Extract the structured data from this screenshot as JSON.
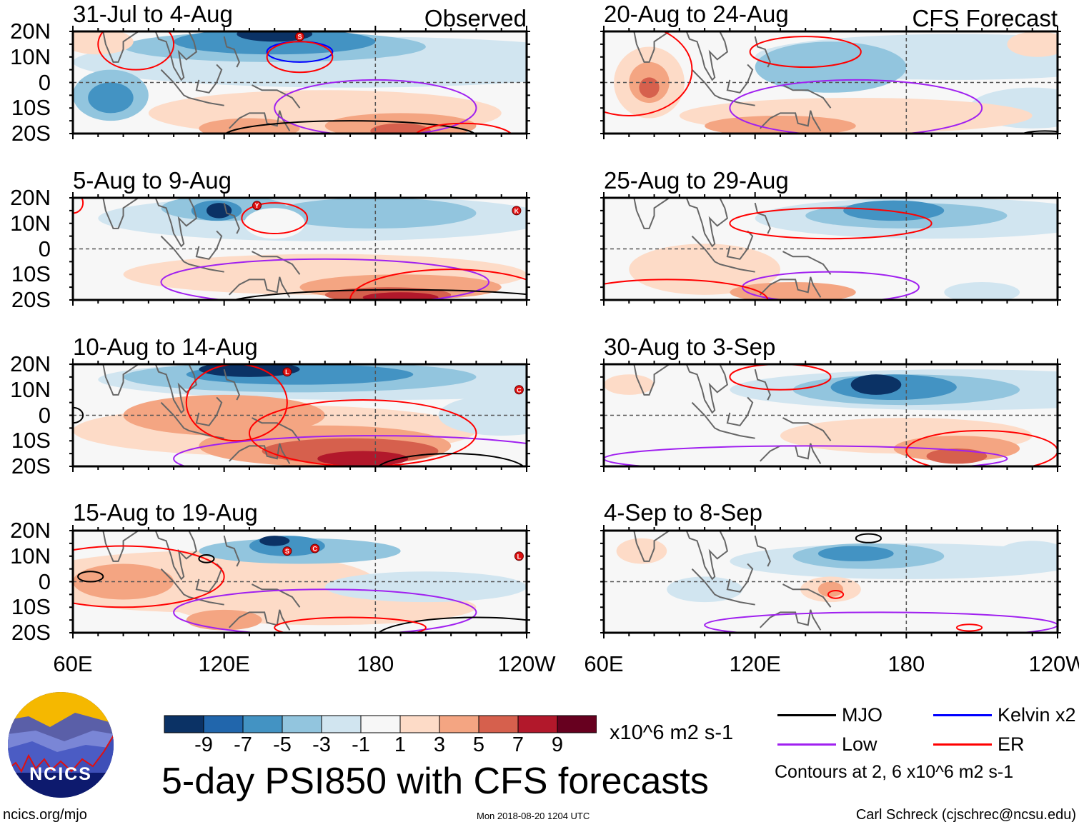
{
  "panels": [
    {
      "title": "31-Jul to 4-Aug",
      "label": "Observed",
      "storms": [
        "S"
      ]
    },
    {
      "title": "20-Aug to 24-Aug",
      "label": "CFS Forecast",
      "storms": []
    },
    {
      "title": "5-Aug to 9-Aug",
      "label": "",
      "storms": [
        "Y",
        "K"
      ]
    },
    {
      "title": "25-Aug to 29-Aug",
      "label": "",
      "storms": []
    },
    {
      "title": "10-Aug to 14-Aug",
      "label": "",
      "storms": [
        "L",
        "C"
      ]
    },
    {
      "title": "30-Aug to 3-Sep",
      "label": "",
      "storms": []
    },
    {
      "title": "15-Aug to 19-Aug",
      "label": "",
      "storms": [
        "S",
        "C",
        "L"
      ]
    },
    {
      "title": "4-Sep to 8-Sep",
      "label": "",
      "storms": []
    }
  ],
  "lat_labels": [
    "20N",
    "10N",
    "0",
    "10S",
    "20S"
  ],
  "lon_labels": [
    "60E",
    "120E",
    "180",
    "120W"
  ],
  "colorbar": {
    "ticks": [
      "-9",
      "-7",
      "-5",
      "-3",
      "-1",
      "1",
      "3",
      "5",
      "7",
      "9"
    ],
    "colors": [
      "#0b3265",
      "#2166ac",
      "#4393c3",
      "#92c5de",
      "#d1e5f0",
      "#f7f7f7",
      "#fddbc7",
      "#f4a582",
      "#d6604d",
      "#b2182b",
      "#67001f"
    ],
    "units": "x10^6 m2 s-1"
  },
  "title": "5-day PSI850 with CFS forecasts",
  "legend": [
    {
      "label": "MJO",
      "color": "#000000"
    },
    {
      "label": "Kelvin x2",
      "color": "#0000ff"
    },
    {
      "label": "Low",
      "color": "#a020f0"
    },
    {
      "label": "ER",
      "color": "#ff0000"
    }
  ],
  "contour_note": "Contours at 2, 6 x10^6 m2 s-1",
  "logo_text": "NCICS",
  "footer": {
    "url": "ncics.org/mjo",
    "timestamp": "Mon 2018-08-20 1204 UTC",
    "credit": "Carl Schreck (cjschrec@ncsu.edu)"
  }
}
